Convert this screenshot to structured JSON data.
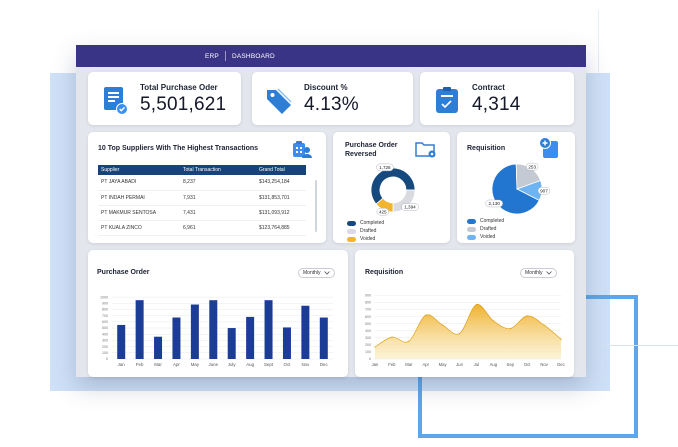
{
  "topbar": {
    "app": "ERP",
    "page": "DASHBOARD"
  },
  "kpis": [
    {
      "label": "Total Purchase Oder",
      "value": "5,501,621",
      "icon": "document-check-icon"
    },
    {
      "label": "Discount %",
      "value": "4.13%",
      "icon": "price-tag-icon"
    },
    {
      "label": "Contract",
      "value": "4,314",
      "icon": "contract-check-icon"
    }
  ],
  "suppliers": {
    "title": "10 Top Suppliers With The Highest Transactions",
    "icon": "users-building-icon",
    "columns": [
      "Supplier",
      "Total Transaction",
      "Grand Total"
    ],
    "rows": [
      [
        "PT JAYA ABADI",
        "8,237",
        "$143,254,184"
      ],
      [
        "PT INDAH PERMAI",
        "7,931",
        "$131,853,701"
      ],
      [
        "PT MAKMUR SENTOSA",
        "7,431",
        "$131,093,912"
      ],
      [
        "PT KUALA ZINCO",
        "6,961",
        "$123,764,885"
      ]
    ]
  },
  "po_reversed": {
    "title_line1": "Purchase Order",
    "title_line2": "Reversed",
    "icon": "folder-gear-icon",
    "legend": [
      "Completed",
      "Drafted",
      "Voided"
    ],
    "colors": [
      "#164a7e",
      "#d9dbe0",
      "#f2b52d"
    ]
  },
  "requisition_pie": {
    "title": "Requisition",
    "icon": "add-document-icon",
    "legend": [
      "Completed",
      "Drafted",
      "Voided"
    ],
    "colors": [
      "#2276d0",
      "#c4cad3",
      "#6fb4f2"
    ]
  },
  "colors": {
    "brand": "#3a3487",
    "accent": "#2e7ed6",
    "bar": "#1c3d96",
    "area": "#f1bd4c",
    "table_header": "#18427a"
  },
  "dropdown": {
    "label": "Monthly"
  },
  "chart_data": [
    {
      "id": "po_reversed_donut",
      "type": "pie",
      "labels": [
        "Completed",
        "Drafted",
        "Voided"
      ],
      "values": [
        61,
        25,
        14
      ],
      "data_labels": [
        "1,726",
        "1,394",
        "425"
      ]
    },
    {
      "id": "requisition_pie",
      "type": "pie",
      "labels": [
        "Completed",
        "Drafted",
        "Voided"
      ],
      "values": [
        67,
        20,
        13
      ],
      "data_labels": [
        "2,130",
        "253",
        "907"
      ]
    },
    {
      "id": "purchase_order_bar",
      "type": "bar",
      "title": "Purchase Order",
      "categories": [
        "Jan",
        "Feb",
        "Mar",
        "Apr",
        "May",
        "June",
        "July",
        "Aug",
        "Sept",
        "Oct",
        "Nov",
        "Dec"
      ],
      "values": [
        550,
        950,
        360,
        670,
        880,
        950,
        500,
        680,
        950,
        510,
        860,
        670
      ],
      "yticks": [
        "0",
        "100",
        "200",
        "300",
        "400",
        "500",
        "600",
        "700",
        "800",
        "900",
        "1000"
      ],
      "ylim": [
        0,
        1050
      ]
    },
    {
      "id": "requisition_area",
      "type": "area",
      "title": "Requisition",
      "categories": [
        "Jan",
        "Feb",
        "Mar",
        "Apr",
        "May",
        "Jun",
        "Jul",
        "Aug",
        "Sep",
        "Oct",
        "Nov",
        "Dec"
      ],
      "values": [
        170,
        310,
        250,
        620,
        480,
        360,
        770,
        540,
        430,
        610,
        480,
        280
      ],
      "yticks": [
        "0",
        "100",
        "200",
        "300",
        "400",
        "500",
        "600",
        "700",
        "800",
        "900"
      ],
      "ylim": [
        0,
        920
      ]
    }
  ]
}
